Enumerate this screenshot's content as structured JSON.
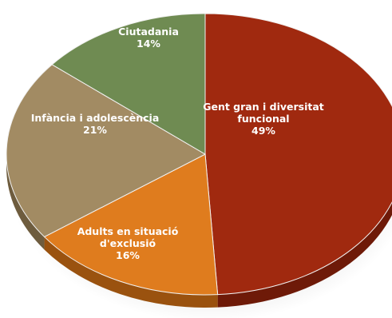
{
  "chart_data": {
    "type": "pie",
    "slices": [
      {
        "label_lines": [
          "Gent gran i diversitat",
          "funcional"
        ],
        "percent_label": "49%",
        "value": 49,
        "color": "#A0290F",
        "side_color": "#6E1A08"
      },
      {
        "label_lines": [
          "Adults en situació",
          "d'exclusió"
        ],
        "percent_label": "16%",
        "value": 16,
        "color": "#DF7C1E",
        "side_color": "#9A520F"
      },
      {
        "label_lines": [
          "Infància i adolescència"
        ],
        "percent_label": "21%",
        "value": 21,
        "color": "#A28B63",
        "side_color": "#6E5C3E"
      },
      {
        "label_lines": [
          "Ciutadania"
        ],
        "percent_label": "14%",
        "value": 14,
        "color": "#6F8B52",
        "side_color": "#4A5E36"
      }
    ]
  }
}
